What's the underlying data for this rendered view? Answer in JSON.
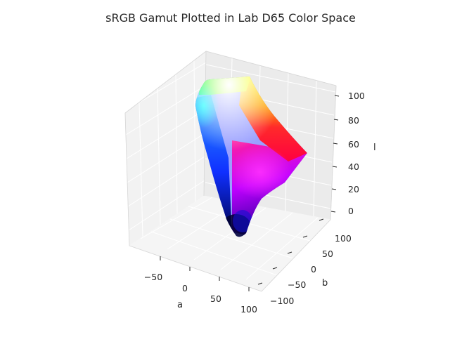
{
  "chart_data": {
    "type": "surface3d",
    "title": "sRGB Gamut Plotted in Lab D65 Color Space",
    "xlabel": "a",
    "ylabel": "b",
    "zlabel": "l",
    "x_ticks": [
      "−50",
      "0",
      "50",
      "100"
    ],
    "y_ticks": [
      "−100",
      "−50",
      "0",
      "50",
      "100"
    ],
    "z_ticks": [
      "0",
      "20",
      "40",
      "60",
      "80",
      "100"
    ],
    "xlim": [
      -90,
      100
    ],
    "ylim": [
      -110,
      100
    ],
    "zlim": [
      -5,
      105
    ],
    "gamut_vertices": [
      {
        "name": "black",
        "a": 0,
        "b": 0,
        "l": 0,
        "color": "#000000"
      },
      {
        "name": "blue",
        "a": 79,
        "b": -108,
        "l": 32,
        "color": "#0000ff"
      },
      {
        "name": "magenta",
        "a": 98,
        "b": -61,
        "l": 60,
        "color": "#ff00ff"
      },
      {
        "name": "red",
        "a": 80,
        "b": 67,
        "l": 53,
        "color": "#ff0000"
      },
      {
        "name": "yellow",
        "a": -22,
        "b": 94,
        "l": 97,
        "color": "#ffff00"
      },
      {
        "name": "green",
        "a": -86,
        "b": 83,
        "l": 88,
        "color": "#00ff00"
      },
      {
        "name": "cyan",
        "a": -48,
        "b": -14,
        "l": 91,
        "color": "#00ffff"
      },
      {
        "name": "white",
        "a": 0,
        "b": 0,
        "l": 100,
        "color": "#ffffff"
      }
    ]
  }
}
